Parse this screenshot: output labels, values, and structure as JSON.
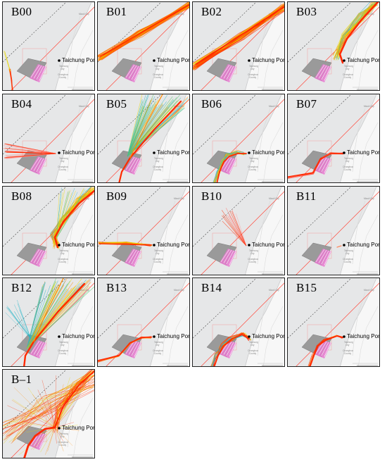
{
  "figure": {
    "port_label": "Taichung Port",
    "panels": [
      {
        "label": "B00",
        "pattern": "b00"
      },
      {
        "label": "B01",
        "pattern": "b01"
      },
      {
        "label": "B02",
        "pattern": "b02"
      },
      {
        "label": "B03",
        "pattern": "b03"
      },
      {
        "label": "B04",
        "pattern": "b04"
      },
      {
        "label": "B05",
        "pattern": "b05"
      },
      {
        "label": "B06",
        "pattern": "b06"
      },
      {
        "label": "B07",
        "pattern": "b07"
      },
      {
        "label": "B08",
        "pattern": "b08"
      },
      {
        "label": "B09",
        "pattern": "b09"
      },
      {
        "label": "B10",
        "pattern": "b10"
      },
      {
        "label": "B11",
        "pattern": "b11"
      },
      {
        "label": "B12",
        "pattern": "b12"
      },
      {
        "label": "B13",
        "pattern": "b13"
      },
      {
        "label": "B14",
        "pattern": "b14"
      },
      {
        "label": "B15",
        "pattern": "b15"
      },
      {
        "label": "B–1",
        "pattern": "bm1"
      }
    ],
    "colors": {
      "sea": "#e6e7e8",
      "land": "#f7f7f7",
      "coast": "#c9cacb",
      "wind_farm": "#9a9a9a",
      "wind_farm_pink": "#e87ad0",
      "track_red": "#ff2a00",
      "track_orange": "#ff8a00",
      "track_yellow": "#e8d800",
      "track_cyan": "#29b6c8",
      "boundary_red": "#ff4a3d",
      "boundary_dash": "#444444"
    }
  }
}
